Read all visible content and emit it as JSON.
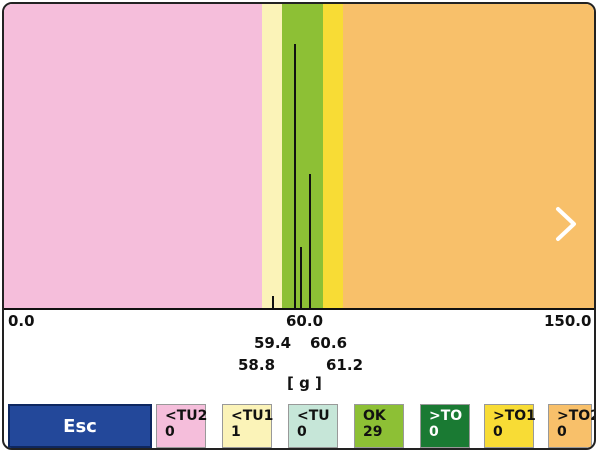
{
  "axis": {
    "min_label": "0.0",
    "center_label": "60.0",
    "max_label": "150.0",
    "unit": "[ g ]"
  },
  "tolerances": {
    "tu1": "59.4",
    "to1": "60.6",
    "tu2": "58.8",
    "to2": "61.2"
  },
  "zone_colors": {
    "tu2": "#f5bedb",
    "tu1": "#fbf3b8",
    "tu": "#c6e6d8",
    "ok": "#8dc035",
    "to": "#1a7a33",
    "to1": "#f8dc35",
    "to2": "#f8c06a"
  },
  "chart_data": {
    "type": "bar",
    "x_range": [
      0.0,
      150.0
    ],
    "target": 60.0,
    "bars": [
      {
        "x": 58.0,
        "height": 0.04
      },
      {
        "x": 59.4,
        "height": 0.87
      },
      {
        "x": 59.9,
        "height": 0.2
      },
      {
        "x": 60.5,
        "height": 0.44
      }
    ]
  },
  "buttons": {
    "esc_label": "Esc",
    "categories": [
      {
        "label": "<TU2",
        "count": "0",
        "color": "#f5bedb",
        "text_color": "#111111"
      },
      {
        "label": "<TU1",
        "count": "1",
        "color": "#fbf3b8",
        "text_color": "#111111"
      },
      {
        "label": "<TU",
        "count": "0",
        "color": "#c6e6d8",
        "text_color": "#111111"
      },
      {
        "label": "OK",
        "count": "29",
        "color": "#8dc035",
        "text_color": "#111111"
      },
      {
        "label": ">TO",
        "count": "0",
        "color": "#1a7a33",
        "text_color": "#ffffff"
      },
      {
        "label": ">TO1",
        "count": "0",
        "color": "#f8dc35",
        "text_color": "#111111"
      },
      {
        "label": ">TO2",
        "count": "0",
        "color": "#f8c06a",
        "text_color": "#111111"
      }
    ]
  },
  "icons": {
    "next": "chevron-right-icon"
  }
}
